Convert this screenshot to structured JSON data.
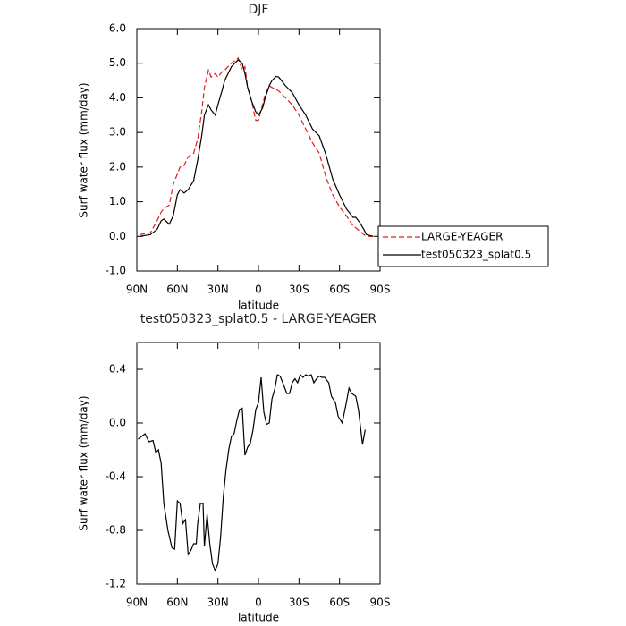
{
  "chart_data": [
    {
      "type": "line",
      "title": "DJF",
      "x_label": "latitude",
      "y_label": "Surf water flux (mm/day)",
      "x": [
        88,
        80,
        75,
        72,
        70,
        66,
        63,
        60,
        58,
        55,
        52,
        48,
        45,
        42,
        40,
        37,
        35,
        32,
        30,
        27,
        25,
        20,
        15,
        12,
        10,
        8,
        5,
        2,
        0,
        -3,
        -5,
        -8,
        -10,
        -13,
        -15,
        -20,
        -25,
        -30,
        -35,
        -40,
        -45,
        -50,
        -55,
        -60,
        -65,
        -70,
        -72,
        -75,
        -78,
        -80,
        -85
      ],
      "xlim": [
        90,
        -90
      ],
      "xticks": [
        {
          "value": 90,
          "label": "90N"
        },
        {
          "value": 60,
          "label": "60N"
        },
        {
          "value": 30,
          "label": "30N"
        },
        0,
        {
          "value": -30,
          "label": "30S"
        },
        {
          "value": -60,
          "label": "60S"
        },
        {
          "value": -90,
          "label": "90S"
        }
      ],
      "ylim": [
        -1,
        6
      ],
      "yticks": [
        {
          "value": -1,
          "label": "-1.0"
        },
        {
          "value": 0,
          "label": "0.0"
        },
        {
          "value": 1,
          "label": "1.0"
        },
        {
          "value": 2,
          "label": "2.0"
        },
        {
          "value": 3,
          "label": "3.0"
        },
        {
          "value": 4,
          "label": "4.0"
        },
        {
          "value": 5,
          "label": "5.0"
        },
        {
          "value": 6,
          "label": "6.0"
        }
      ],
      "legend": "right",
      "series": [
        {
          "name": "LARGE-YEAGER",
          "color": "#e41a1c",
          "dashed": true,
          "values": [
            0.05,
            0.1,
            0.45,
            0.7,
            0.8,
            0.9,
            1.5,
            1.8,
            2.0,
            2.05,
            2.3,
            2.4,
            2.8,
            3.6,
            4.3,
            4.8,
            4.6,
            4.7,
            4.6,
            4.75,
            4.8,
            5.0,
            5.15,
            4.8,
            4.9,
            4.3,
            3.9,
            3.35,
            3.35,
            3.8,
            4.1,
            4.35,
            4.3,
            4.25,
            4.2,
            4.0,
            3.8,
            3.5,
            3.1,
            2.7,
            2.4,
            1.7,
            1.2,
            0.85,
            0.6,
            0.3,
            0.25,
            0.15,
            0.05,
            0.0,
            0.0
          ]
        },
        {
          "name": "test050323_splat0.5",
          "color": "#000000",
          "dashed": false,
          "values": [
            0.0,
            0.05,
            0.2,
            0.45,
            0.5,
            0.35,
            0.6,
            1.2,
            1.35,
            1.25,
            1.35,
            1.6,
            2.2,
            2.9,
            3.5,
            3.8,
            3.65,
            3.5,
            3.8,
            4.2,
            4.5,
            4.9,
            5.1,
            5.0,
            4.7,
            4.3,
            3.9,
            3.6,
            3.5,
            3.7,
            4.0,
            4.35,
            4.5,
            4.62,
            4.6,
            4.35,
            4.15,
            3.8,
            3.5,
            3.1,
            2.9,
            2.35,
            1.65,
            1.2,
            0.8,
            0.55,
            0.55,
            0.4,
            0.2,
            0.05,
            0.0
          ]
        }
      ]
    },
    {
      "type": "line",
      "title": "test050323_splat0.5 - LARGE-YEAGER",
      "x_label": "latitude",
      "y_label": "Surf water flux (mm/day)",
      "x": [
        89,
        84,
        81,
        78,
        76,
        74,
        72,
        70,
        67,
        64,
        62,
        60,
        58,
        56,
        54,
        52,
        50,
        48,
        46,
        45,
        43,
        41,
        40,
        38,
        36,
        34,
        32,
        30,
        28,
        26,
        24,
        22,
        20,
        18,
        16,
        14,
        12,
        10,
        8,
        6,
        4,
        2,
        0,
        -2,
        -4,
        -6,
        -8,
        -10,
        -12,
        -14,
        -16,
        -18,
        -21,
        -23,
        -25,
        -27,
        -29,
        -31,
        -33,
        -35,
        -37,
        -39,
        -41,
        -43,
        -45,
        -47,
        -49,
        -52,
        -54,
        -57,
        -59,
        -62,
        -65,
        -67,
        -69,
        -72,
        -74,
        -77,
        -79
      ],
      "xlim": [
        90,
        -90
      ],
      "xticks": [
        {
          "value": 90,
          "label": "90N"
        },
        {
          "value": 60,
          "label": "60N"
        },
        {
          "value": 30,
          "label": "30N"
        },
        0,
        {
          "value": -30,
          "label": "30S"
        },
        {
          "value": -60,
          "label": "60S"
        },
        {
          "value": -90,
          "label": "90S"
        }
      ],
      "ylim": [
        -1.2,
        0.6
      ],
      "yticks": [
        -1.2,
        -0.8,
        -0.4,
        {
          "value": 0,
          "label": "0.0"
        },
        0.4
      ],
      "series": [
        {
          "color": "#000000",
          "dashed": false,
          "values": [
            -0.12,
            -0.08,
            -0.14,
            -0.13,
            -0.22,
            -0.2,
            -0.3,
            -0.6,
            -0.8,
            -0.93,
            -0.94,
            -0.58,
            -0.6,
            -0.75,
            -0.72,
            -0.98,
            -0.95,
            -0.9,
            -0.9,
            -0.75,
            -0.6,
            -0.6,
            -0.92,
            -0.68,
            -0.9,
            -1.05,
            -1.1,
            -1.05,
            -0.85,
            -0.55,
            -0.35,
            -0.2,
            -0.1,
            -0.08,
            0.02,
            0.1,
            0.11,
            -0.24,
            -0.18,
            -0.15,
            -0.05,
            0.1,
            0.15,
            0.34,
            0.08,
            -0.01,
            0.0,
            0.18,
            0.25,
            0.36,
            0.35,
            0.3,
            0.22,
            0.22,
            0.3,
            0.33,
            0.3,
            0.36,
            0.34,
            0.36,
            0.35,
            0.36,
            0.3,
            0.33,
            0.35,
            0.34,
            0.34,
            0.3,
            0.2,
            0.15,
            0.05,
            0.0,
            0.15,
            0.26,
            0.22,
            0.2,
            0.1,
            -0.16,
            -0.05
          ]
        }
      ]
    }
  ]
}
